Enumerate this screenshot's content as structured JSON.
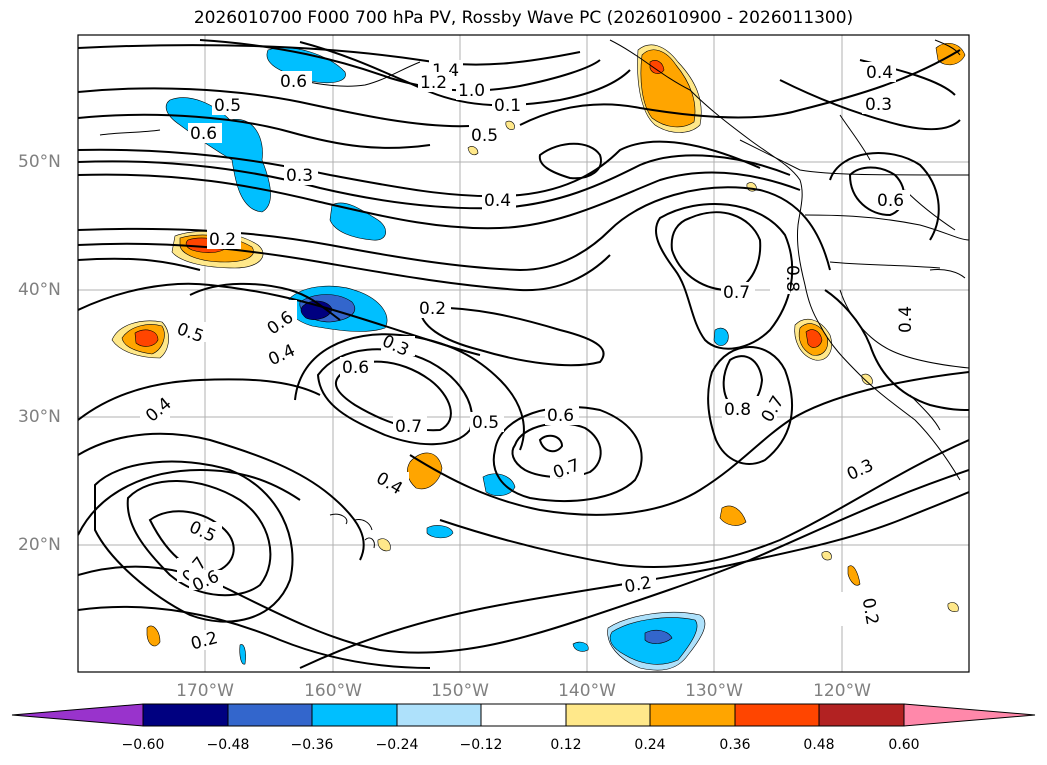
{
  "title": "2026010700 F000 700 hPa PV, Rossby Wave PC (2026010900 - 2026011300)",
  "lat_labels": [
    "50°N",
    "40°N",
    "30°N",
    "20°N"
  ],
  "lon_labels": [
    "170°W",
    "160°W",
    "150°W",
    "140°W",
    "130°W",
    "120°W"
  ],
  "colorbar": {
    "ticks": [
      "−0.60",
      "−0.48",
      "−0.36",
      "−0.24",
      "−0.12",
      "0.12",
      "0.24",
      "0.36",
      "0.48",
      "0.60"
    ],
    "colors": [
      "#9933cc",
      "#000080",
      "#3366cc",
      "#00bfff",
      "#aee1fb",
      "#ffffff",
      "#ffe88a",
      "#ffa500",
      "#ff4500",
      "#b22222",
      "#ff88aa"
    ]
  },
  "contour_labels": [
    "1.4",
    "1.2",
    "1.0",
    "0.6",
    "0.5",
    "0.6",
    "0.1",
    "0.5",
    "0.4",
    "0.3",
    "0.3",
    "0.4",
    "0.6",
    "0.2",
    "0.2",
    "0.7",
    "0.8",
    "0.6",
    "0.5",
    "0.4",
    "0.3",
    "0.4",
    "0.6",
    "0.7",
    "0.5",
    "0.6",
    "0.7",
    "0.8",
    "0.7",
    "0.4",
    "0.3",
    "0.5",
    "0.7",
    "0.6",
    "0.2",
    "0.2",
    "0.2",
    "0.4"
  ]
}
